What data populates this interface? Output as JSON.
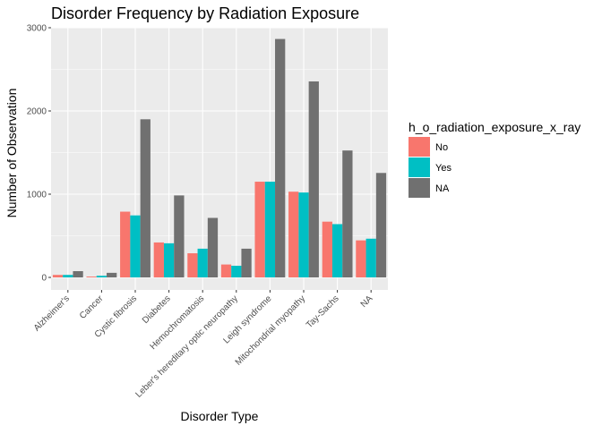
{
  "chart_data": {
    "type": "bar",
    "title": "Disorder Frequency by Radiation Exposure",
    "xlabel": "Disorder Type",
    "ylabel": "Number of Observation",
    "categories": [
      "Alzheimer's",
      "Cancer",
      "Cystic fibrosis",
      "Diabetes",
      "Hemochromatosis",
      "Leber's hereditary optic neuropathy",
      "Leigh syndrome",
      "Mitochondrial myopathy",
      "Tay-Sachs",
      "NA"
    ],
    "series": [
      {
        "name": "No",
        "color": "#F8766D",
        "values": [
          30,
          10,
          790,
          420,
          290,
          155,
          1150,
          1030,
          670,
          445
        ]
      },
      {
        "name": "Yes",
        "color": "#00BFC4",
        "values": [
          30,
          20,
          745,
          410,
          345,
          140,
          1150,
          1020,
          640,
          465
        ]
      },
      {
        "name": "NA",
        "color": "#707070",
        "values": [
          75,
          55,
          1900,
          985,
          715,
          345,
          2865,
          2355,
          1525,
          1255
        ]
      }
    ],
    "y_ticks": [
      "0",
      "1000",
      "2000",
      "3000"
    ],
    "ylim": [
      0,
      3000
    ],
    "grid": true,
    "panel_background": "#EBEBEB",
    "legend": {
      "title": "h_o_radiation_exposure_x_ray",
      "position": "right"
    }
  }
}
